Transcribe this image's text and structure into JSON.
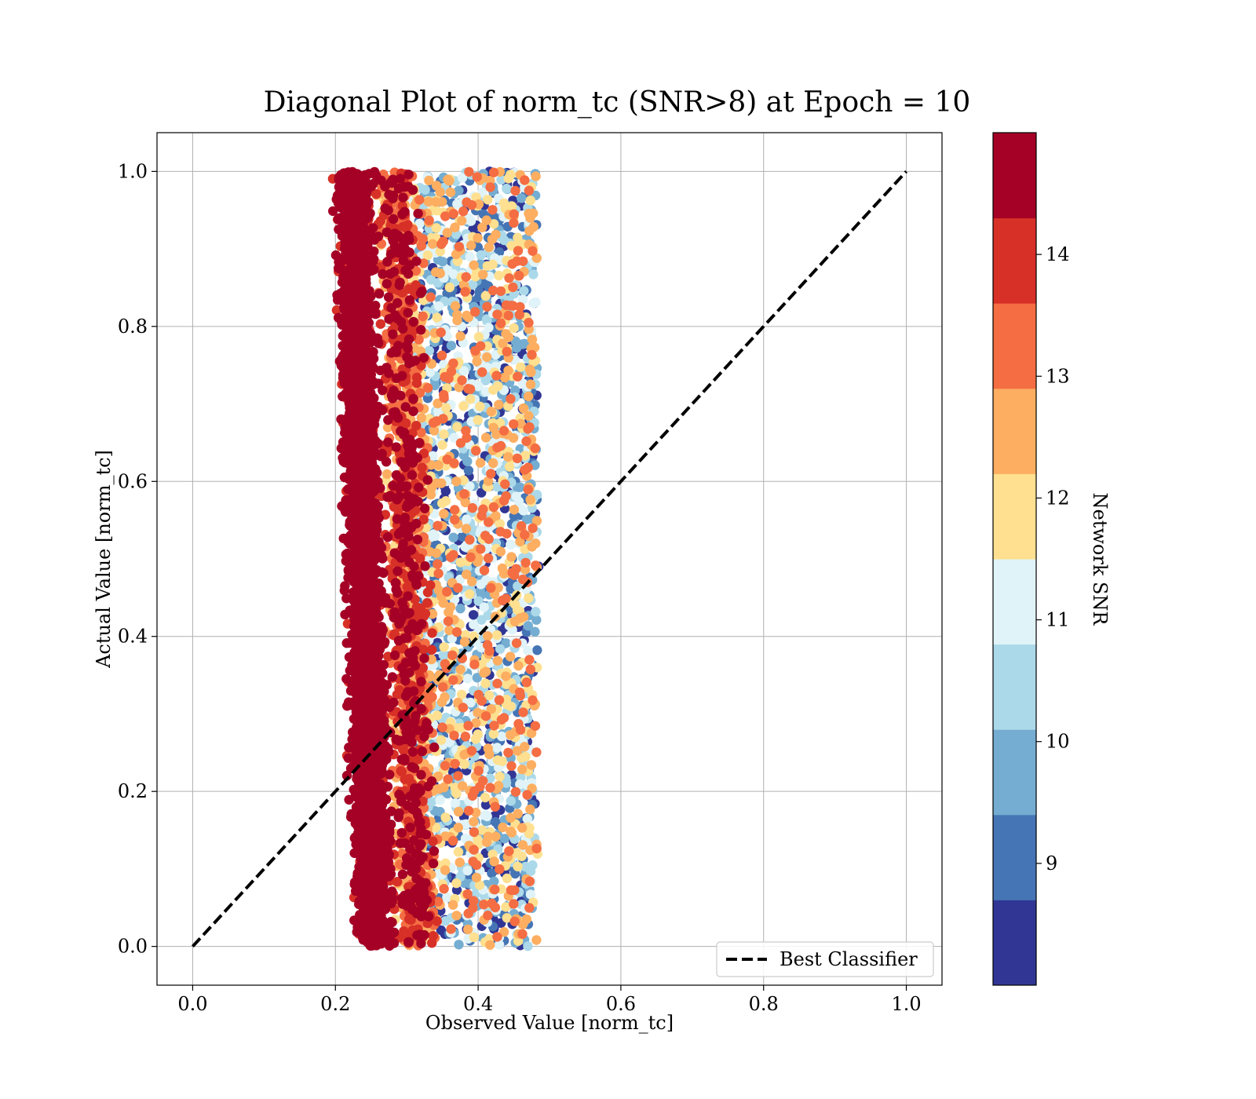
{
  "chart_data": {
    "type": "scatter",
    "title": "Diagonal Plot of norm_tc (SNR>8) at Epoch = 10",
    "xlabel": "Observed Value [norm_tc]",
    "ylabel": "Actual Value [norm_tc]",
    "xlim": [
      -0.05,
      1.05
    ],
    "ylim": [
      -0.05,
      1.05
    ],
    "xticks": [
      "0.0",
      "0.2",
      "0.4",
      "0.6",
      "0.8",
      "1.0"
    ],
    "yticks": [
      "0.0",
      "0.2",
      "0.4",
      "0.6",
      "0.8",
      "1.0"
    ],
    "grid": true,
    "reference_line": {
      "name": "Best Classifier",
      "x": [
        0,
        1
      ],
      "y": [
        0,
        1
      ],
      "style": "dashed",
      "color": "#000000"
    },
    "legend": {
      "position": "lower-right",
      "entries": [
        "Best Classifier"
      ]
    },
    "colorbar": {
      "label": "Network SNR",
      "range": [
        8,
        15
      ],
      "ticks": [
        "9",
        "10",
        "11",
        "12",
        "13",
        "14"
      ],
      "colors": [
        "#313695",
        "#4575b4",
        "#74add1",
        "#abd9e9",
        "#e0f3f8",
        "#fee090",
        "#fdae61",
        "#f46d43",
        "#d73027",
        "#a50026"
      ]
    },
    "point_distribution": {
      "description": "dense vertical band: observed values spread from about 0.18 to 0.51 across all actual values 0 to 1; low observed values carry high SNR",
      "observed_min": 0.18,
      "observed_max": 0.51,
      "actual_min": 0.0,
      "actual_max": 1.0,
      "snr_min": 8,
      "snr_max": 15
    }
  }
}
